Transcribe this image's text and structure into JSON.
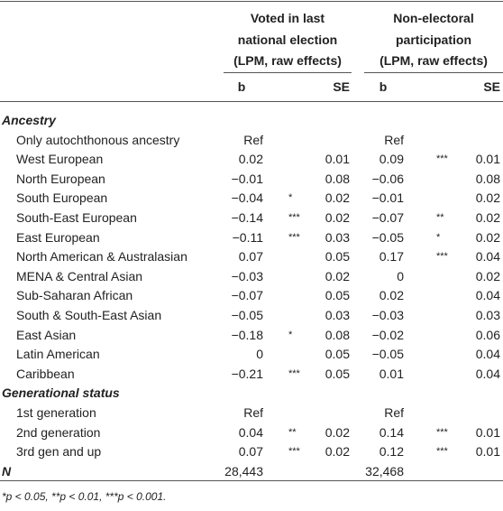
{
  "table": {
    "group_headers": [
      [
        "Voted in last",
        "national election",
        "(LPM, raw effects)"
      ],
      [
        "Non-electoral",
        "participation",
        "(LPM, raw effects)"
      ]
    ],
    "sub_headers": [
      "b",
      "SE",
      "b",
      "SE"
    ],
    "rows": [
      {
        "section": "Ancestry"
      },
      {
        "cells": [
          "Only autochthonous ancestry",
          "Ref",
          null,
          null,
          "Ref",
          null,
          null
        ]
      },
      {
        "cells": [
          "West European",
          "0.02",
          null,
          "0.01",
          "0.09",
          "***",
          "0.01"
        ]
      },
      {
        "cells": [
          "North European",
          "−0.01",
          null,
          "0.08",
          "−0.06",
          null,
          "0.08"
        ]
      },
      {
        "cells": [
          "South European",
          "−0.04",
          "*",
          "0.02",
          "−0.01",
          null,
          "0.02"
        ]
      },
      {
        "cells": [
          "South-East European",
          "−0.14",
          "***",
          "0.02",
          "−0.07",
          "**",
          "0.02"
        ]
      },
      {
        "cells": [
          "East European",
          "−0.11",
          "***",
          "0.03",
          "−0.05",
          "*",
          "0.02"
        ]
      },
      {
        "cells": [
          "North American & Australasian",
          "0.07",
          null,
          "0.05",
          "0.17",
          "***",
          "0.04"
        ]
      },
      {
        "cells": [
          "MENA & Central Asian",
          "−0.03",
          null,
          "0.02",
          "0",
          null,
          "0.02"
        ]
      },
      {
        "cells": [
          "Sub-Saharan African",
          "−0.07",
          null,
          "0.05",
          "0.02",
          null,
          "0.04"
        ]
      },
      {
        "cells": [
          "South & South-East Asian",
          "−0.05",
          null,
          "0.03",
          "−0.03",
          null,
          "0.03"
        ]
      },
      {
        "cells": [
          "East Asian",
          "−0.18",
          "*",
          "0.08",
          "−0.02",
          null,
          "0.06"
        ]
      },
      {
        "cells": [
          "Latin American",
          "0",
          null,
          "0.05",
          "−0.05",
          null,
          "0.04"
        ]
      },
      {
        "cells": [
          "Caribbean",
          "−0.21",
          "***",
          "0.05",
          "0.01",
          null,
          "0.04"
        ]
      },
      {
        "section": "Generational status"
      },
      {
        "cells": [
          "1st generation",
          "Ref",
          null,
          null,
          "Ref",
          null,
          null
        ]
      },
      {
        "cells": [
          "2nd generation",
          "0.04",
          "**",
          "0.02",
          "0.14",
          "***",
          "0.01"
        ]
      },
      {
        "cells": [
          "3rd gen and up",
          "0.07",
          "***",
          "0.02",
          "0.12",
          "***",
          "0.01"
        ]
      },
      {
        "section": "N",
        "cells": [
          null,
          "28,443",
          null,
          null,
          "32,468",
          null,
          null
        ]
      }
    ],
    "footnote": "*p < 0.05, **p < 0.01, ***p < 0.001."
  }
}
